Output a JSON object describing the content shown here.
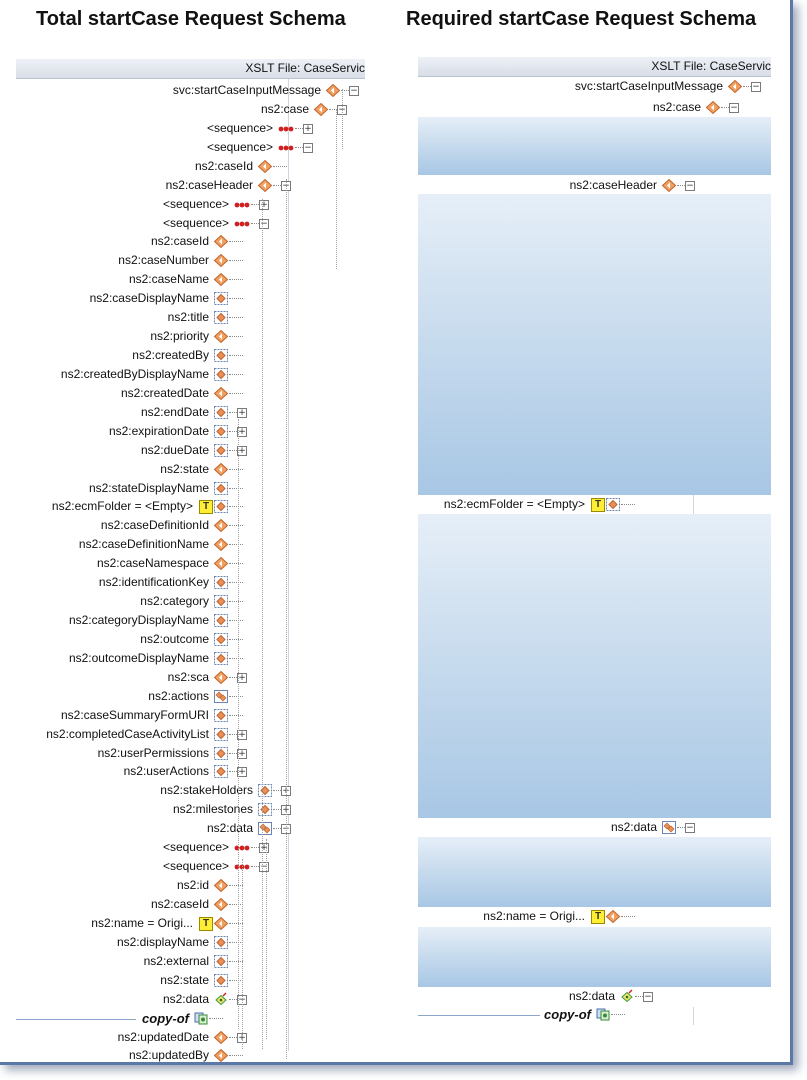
{
  "titles": {
    "left": "Total startCase Request Schema",
    "right": "Required startCase Request Schema"
  },
  "header": {
    "left": "XSLT File: CaseServic",
    "right": "XSLT File: CaseServic"
  },
  "left_rows": [
    {
      "label": "svc:startCaseInputMessage",
      "icon": "element-icon",
      "pm": "minus"
    },
    {
      "label": "ns2:case",
      "icon": "element-icon",
      "pm": "minus"
    },
    {
      "label": "<sequence>",
      "icon": "sequence-icon",
      "pm": "plus"
    },
    {
      "label": "<sequence>",
      "icon": "sequence-icon",
      "pm": "minus"
    },
    {
      "label": "ns2:caseId",
      "icon": "element-icon",
      "pm": ""
    },
    {
      "label": "ns2:caseHeader",
      "icon": "element-icon",
      "pm": "minus"
    },
    {
      "label": "<sequence>",
      "icon": "sequence-icon",
      "pm": "plus"
    },
    {
      "label": "<sequence>",
      "icon": "sequence-icon",
      "pm": "minus"
    },
    {
      "label": "ns2:caseId",
      "icon": "element-icon",
      "pm": ""
    },
    {
      "label": "ns2:caseNumber",
      "icon": "element-icon",
      "pm": ""
    },
    {
      "label": "ns2:caseName",
      "icon": "element-icon",
      "pm": ""
    },
    {
      "label": "ns2:caseDisplayName",
      "icon": "optional-element-icon",
      "pm": ""
    },
    {
      "label": "ns2:title",
      "icon": "optional-element-icon",
      "pm": ""
    },
    {
      "label": "ns2:priority",
      "icon": "element-icon",
      "pm": ""
    },
    {
      "label": "ns2:createdBy",
      "icon": "optional-element-icon",
      "pm": ""
    },
    {
      "label": "ns2:createdByDisplayName",
      "icon": "optional-element-icon",
      "pm": ""
    },
    {
      "label": "ns2:createdDate",
      "icon": "element-icon",
      "pm": ""
    },
    {
      "label": "ns2:endDate",
      "icon": "optional-element-icon",
      "pm": "plus"
    },
    {
      "label": "ns2:expirationDate",
      "icon": "optional-element-icon",
      "pm": "plus"
    },
    {
      "label": "ns2:dueDate",
      "icon": "optional-element-icon",
      "pm": "plus"
    },
    {
      "label": "ns2:state",
      "icon": "element-icon",
      "pm": ""
    },
    {
      "label": "ns2:stateDisplayName",
      "icon": "optional-element-icon",
      "pm": ""
    },
    {
      "label": "ns2:ecmFolder = <Empty>",
      "icon": "optional-element-icon",
      "pm": "",
      "badge": "T"
    },
    {
      "label": "ns2:caseDefinitionId",
      "icon": "element-icon",
      "pm": ""
    },
    {
      "label": "ns2:caseDefinitionName",
      "icon": "element-icon",
      "pm": ""
    },
    {
      "label": "ns2:caseNamespace",
      "icon": "element-icon",
      "pm": ""
    },
    {
      "label": "ns2:identificationKey",
      "icon": "optional-element-icon",
      "pm": ""
    },
    {
      "label": "ns2:category",
      "icon": "optional-element-icon",
      "pm": ""
    },
    {
      "label": "ns2:categoryDisplayName",
      "icon": "optional-element-icon",
      "pm": ""
    },
    {
      "label": "ns2:outcome",
      "icon": "optional-element-icon",
      "pm": ""
    },
    {
      "label": "ns2:outcomeDisplayName",
      "icon": "optional-element-icon",
      "pm": ""
    },
    {
      "label": "ns2:sca",
      "icon": "element-icon",
      "pm": "plus"
    },
    {
      "label": "ns2:actions",
      "icon": "repeating-element-icon",
      "pm": ""
    },
    {
      "label": "ns2:caseSummaryFormURI",
      "icon": "optional-element-icon",
      "pm": ""
    },
    {
      "label": "ns2:completedCaseActivityList",
      "icon": "optional-element-icon",
      "pm": "plus"
    },
    {
      "label": "ns2:userPermissions",
      "icon": "optional-element-icon",
      "pm": "plus"
    },
    {
      "label": "ns2:userActions",
      "icon": "optional-element-icon",
      "pm": "plus"
    },
    {
      "label": "ns2:stakeHolders",
      "icon": "optional-element-icon",
      "pm": "plus"
    },
    {
      "label": "ns2:milestones",
      "icon": "optional-element-icon",
      "pm": "plus"
    },
    {
      "label": "ns2:data",
      "icon": "repeating-element-icon",
      "pm": "minus"
    },
    {
      "label": "<sequence>",
      "icon": "sequence-icon",
      "pm": "plus"
    },
    {
      "label": "<sequence>",
      "icon": "sequence-icon",
      "pm": "minus"
    },
    {
      "label": "ns2:id",
      "icon": "element-icon",
      "pm": ""
    },
    {
      "label": "ns2:caseId",
      "icon": "element-icon",
      "pm": ""
    },
    {
      "label": "ns2:name = Origi...",
      "icon": "element-icon",
      "pm": "",
      "badge": "T"
    },
    {
      "label": "ns2:displayName",
      "icon": "optional-element-icon",
      "pm": ""
    },
    {
      "label": "ns2:external",
      "icon": "optional-element-icon",
      "pm": ""
    },
    {
      "label": "ns2:state",
      "icon": "optional-element-icon",
      "pm": ""
    },
    {
      "label": "ns2:data",
      "icon": "any-element-icon",
      "pm": "minus"
    },
    {
      "label": "copy-of",
      "icon": "copy-of-icon",
      "pm": "",
      "italic": true
    },
    {
      "label": "ns2:updatedDate",
      "icon": "element-icon",
      "pm": "plus"
    },
    {
      "label": "ns2:updatedBy",
      "icon": "element-icon",
      "pm": ""
    }
  ],
  "right_rows": [
    {
      "label": "svc:startCaseInputMessage",
      "icon": "element-icon",
      "pm": "minus"
    },
    {
      "label": "ns2:case",
      "icon": "element-icon",
      "pm": "minus"
    },
    {
      "label": "ns2:caseHeader",
      "icon": "element-icon",
      "pm": "minus"
    },
    {
      "label": "ns2:ecmFolder = <Empty>",
      "icon": "optional-element-icon",
      "pm": "",
      "badge": "T"
    },
    {
      "label": "ns2:data",
      "icon": "repeating-element-icon",
      "pm": "minus"
    },
    {
      "label": "ns2:name = Origi...",
      "icon": "element-icon",
      "pm": "",
      "badge": "T"
    },
    {
      "label": "ns2:data",
      "icon": "any-element-icon",
      "pm": "minus"
    },
    {
      "label": "copy-of",
      "icon": "copy-of-icon",
      "pm": "",
      "italic": true
    }
  ]
}
